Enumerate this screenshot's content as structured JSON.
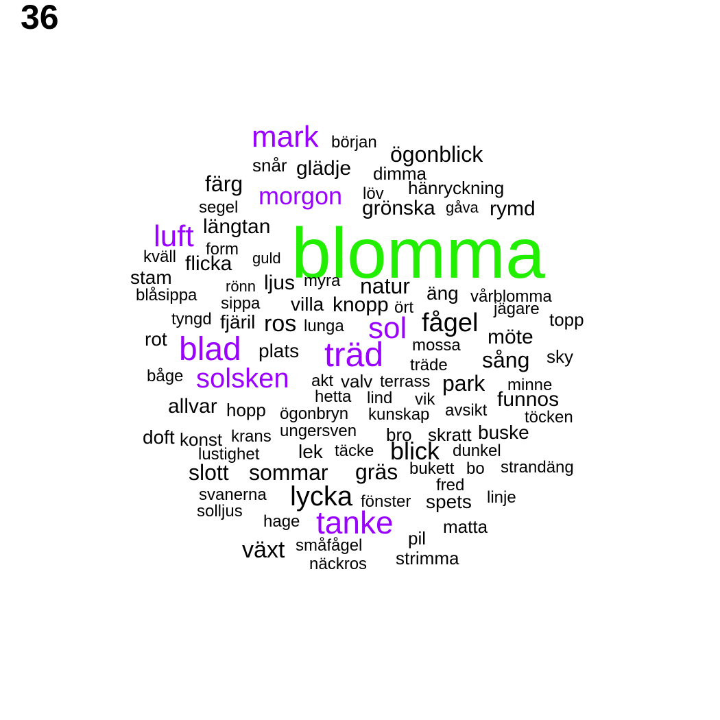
{
  "page_number": "36",
  "colors": {
    "highlight_top": "#22ee00",
    "highlight_mid": "#9900ff",
    "base": "#000000"
  },
  "words": [
    {
      "text": "blomma",
      "tier": "top"
    },
    {
      "text": "träd",
      "tier": "mid"
    },
    {
      "text": "mark",
      "tier": "mid"
    },
    {
      "text": "morgon",
      "tier": "mid"
    },
    {
      "text": "luft",
      "tier": "mid"
    },
    {
      "text": "sol",
      "tier": "mid"
    },
    {
      "text": "blad",
      "tier": "mid"
    },
    {
      "text": "solsken",
      "tier": "mid"
    },
    {
      "text": "tanke",
      "tier": "mid"
    },
    {
      "text": "början",
      "tier": "base"
    },
    {
      "text": "ögonblick",
      "tier": "base"
    },
    {
      "text": "snår",
      "tier": "base"
    },
    {
      "text": "glädje",
      "tier": "base"
    },
    {
      "text": "dimma",
      "tier": "base"
    },
    {
      "text": "färg",
      "tier": "base"
    },
    {
      "text": "löv",
      "tier": "base"
    },
    {
      "text": "hänryckning",
      "tier": "base"
    },
    {
      "text": "segel",
      "tier": "base"
    },
    {
      "text": "grönska",
      "tier": "base"
    },
    {
      "text": "gåva",
      "tier": "base"
    },
    {
      "text": "rymd",
      "tier": "base"
    },
    {
      "text": "längtan",
      "tier": "base"
    },
    {
      "text": "form",
      "tier": "base"
    },
    {
      "text": "kväll",
      "tier": "base"
    },
    {
      "text": "flicka",
      "tier": "base"
    },
    {
      "text": "guld",
      "tier": "base"
    },
    {
      "text": "stam",
      "tier": "base"
    },
    {
      "text": "rönn",
      "tier": "base"
    },
    {
      "text": "ljus",
      "tier": "base"
    },
    {
      "text": "myra",
      "tier": "base"
    },
    {
      "text": "natur",
      "tier": "base"
    },
    {
      "text": "äng",
      "tier": "base"
    },
    {
      "text": "vårblomma",
      "tier": "base"
    },
    {
      "text": "blåsippa",
      "tier": "base"
    },
    {
      "text": "sippa",
      "tier": "base"
    },
    {
      "text": "villa",
      "tier": "base"
    },
    {
      "text": "knopp",
      "tier": "base"
    },
    {
      "text": "ört",
      "tier": "base"
    },
    {
      "text": "jägare",
      "tier": "base"
    },
    {
      "text": "tyngd",
      "tier": "base"
    },
    {
      "text": "fjäril",
      "tier": "base"
    },
    {
      "text": "ros",
      "tier": "base"
    },
    {
      "text": "lunga",
      "tier": "base"
    },
    {
      "text": "fågel",
      "tier": "base"
    },
    {
      "text": "topp",
      "tier": "base"
    },
    {
      "text": "rot",
      "tier": "base"
    },
    {
      "text": "möte",
      "tier": "base"
    },
    {
      "text": "plats",
      "tier": "base"
    },
    {
      "text": "mossa",
      "tier": "base"
    },
    {
      "text": "sång",
      "tier": "base"
    },
    {
      "text": "sky",
      "tier": "base"
    },
    {
      "text": "träde",
      "tier": "base"
    },
    {
      "text": "båge",
      "tier": "base"
    },
    {
      "text": "akt",
      "tier": "base"
    },
    {
      "text": "valv",
      "tier": "base"
    },
    {
      "text": "terrass",
      "tier": "base"
    },
    {
      "text": "park",
      "tier": "base"
    },
    {
      "text": "minne",
      "tier": "base"
    },
    {
      "text": "hetta",
      "tier": "base"
    },
    {
      "text": "lind",
      "tier": "base"
    },
    {
      "text": "vik",
      "tier": "base"
    },
    {
      "text": "funnos",
      "tier": "base"
    },
    {
      "text": "allvar",
      "tier": "base"
    },
    {
      "text": "hopp",
      "tier": "base"
    },
    {
      "text": "ögonbryn",
      "tier": "base"
    },
    {
      "text": "kunskap",
      "tier": "base"
    },
    {
      "text": "avsikt",
      "tier": "base"
    },
    {
      "text": "töcken",
      "tier": "base"
    },
    {
      "text": "ungersven",
      "tier": "base"
    },
    {
      "text": "doft",
      "tier": "base"
    },
    {
      "text": "konst",
      "tier": "base"
    },
    {
      "text": "krans",
      "tier": "base"
    },
    {
      "text": "bro",
      "tier": "base"
    },
    {
      "text": "skratt",
      "tier": "base"
    },
    {
      "text": "buske",
      "tier": "base"
    },
    {
      "text": "lustighet",
      "tier": "base"
    },
    {
      "text": "lek",
      "tier": "base"
    },
    {
      "text": "täcke",
      "tier": "base"
    },
    {
      "text": "blick",
      "tier": "base"
    },
    {
      "text": "dunkel",
      "tier": "base"
    },
    {
      "text": "slott",
      "tier": "base"
    },
    {
      "text": "sommar",
      "tier": "base"
    },
    {
      "text": "gräs",
      "tier": "base"
    },
    {
      "text": "bukett",
      "tier": "base"
    },
    {
      "text": "bo",
      "tier": "base"
    },
    {
      "text": "strandäng",
      "tier": "base"
    },
    {
      "text": "fred",
      "tier": "base"
    },
    {
      "text": "svanerna",
      "tier": "base"
    },
    {
      "text": "lycka",
      "tier": "base"
    },
    {
      "text": "fönster",
      "tier": "base"
    },
    {
      "text": "spets",
      "tier": "base"
    },
    {
      "text": "linje",
      "tier": "base"
    },
    {
      "text": "solljus",
      "tier": "base"
    },
    {
      "text": "hage",
      "tier": "base"
    },
    {
      "text": "matta",
      "tier": "base"
    },
    {
      "text": "pil",
      "tier": "base"
    },
    {
      "text": "småfågel",
      "tier": "base"
    },
    {
      "text": "växt",
      "tier": "base"
    },
    {
      "text": "strimma",
      "tier": "base"
    },
    {
      "text": "näckros",
      "tier": "base"
    }
  ]
}
